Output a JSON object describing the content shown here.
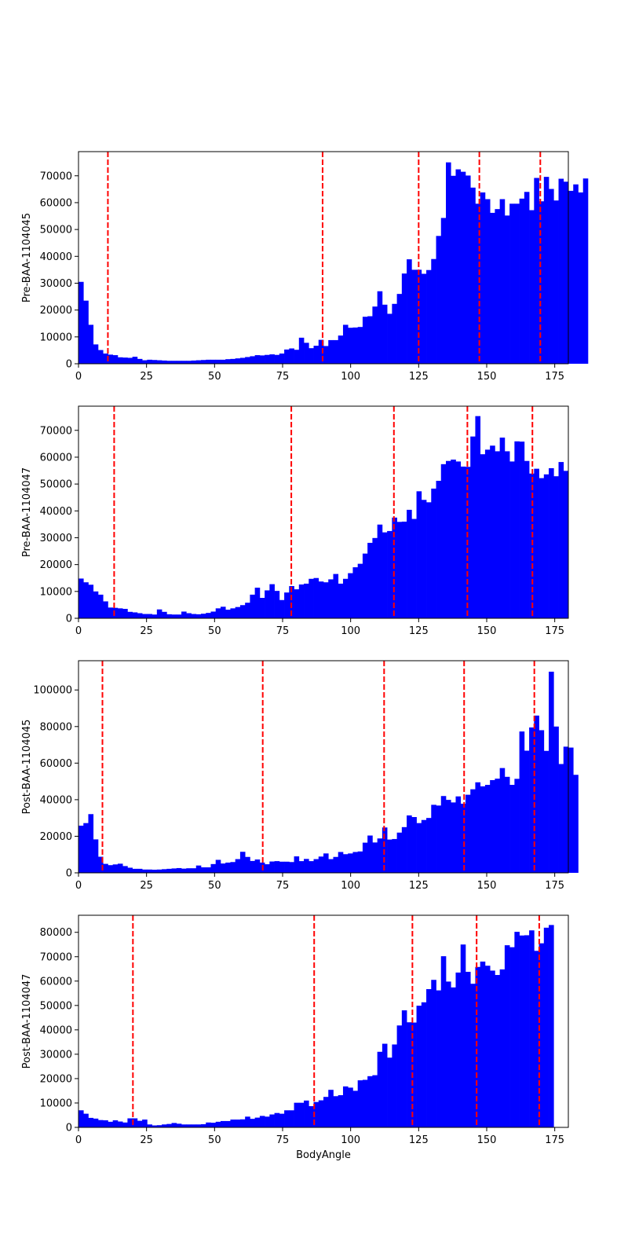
{
  "chart_data": [
    {
      "type": "bar",
      "ylabel": "Pre-BAA-1104045",
      "xlabel": "",
      "xlim": [
        0,
        180
      ],
      "ylim": [
        0,
        79000
      ],
      "bar_width": 1.8,
      "color": "#0000ff",
      "threshold_color": "#ff0000",
      "x_ticks": [
        "0",
        "25",
        "50",
        "75",
        "100",
        "125",
        "150",
        "175"
      ],
      "y_ticks": [
        "0",
        "10000",
        "20000",
        "30000",
        "40000",
        "50000",
        "60000",
        "70000"
      ],
      "thresholds": [
        10.8,
        89.7,
        125,
        147.3,
        169.7
      ],
      "values": [
        30500,
        23500,
        14500,
        7200,
        5100,
        3800,
        3400,
        3200,
        2400,
        2300,
        2200,
        2600,
        1800,
        1300,
        1500,
        1400,
        1300,
        1200,
        1100,
        1100,
        1100,
        1100,
        1100,
        1200,
        1300,
        1400,
        1500,
        1500,
        1500,
        1500,
        1700,
        1800,
        2000,
        2200,
        2500,
        2800,
        3200,
        3100,
        3300,
        3500,
        3300,
        3800,
        5300,
        5700,
        5200,
        9700,
        7800,
        5800,
        6700,
        8900,
        6600,
        8800,
        8800,
        10500,
        14500,
        13400,
        13500,
        13700,
        17500,
        17700,
        21300,
        27000,
        22000,
        18600,
        22300,
        26000,
        33600,
        38900,
        35000,
        35000,
        33500,
        34900,
        39000,
        47600,
        54300,
        75000,
        70000,
        72400,
        71500,
        70100,
        65600,
        59600,
        63800,
        61300,
        56200,
        57600,
        61300,
        55200,
        59600,
        59600,
        61500,
        64000,
        57200,
        69200,
        60500,
        69600,
        65100,
        60800,
        68900,
        67800,
        64400,
        66800,
        63800,
        69000
      ]
    },
    {
      "type": "bar",
      "ylabel": "Pre-BAA-1104047",
      "xlabel": "",
      "xlim": [
        0,
        180
      ],
      "ylim": [
        0,
        79000
      ],
      "bar_width": 1.8,
      "color": "#0000ff",
      "threshold_color": "#ff0000",
      "x_ticks": [
        "0",
        "25",
        "50",
        "75",
        "100",
        "125",
        "150",
        "175"
      ],
      "y_ticks": [
        "0",
        "10000",
        "20000",
        "30000",
        "40000",
        "50000",
        "60000",
        "70000"
      ],
      "thresholds": [
        13.1,
        78.2,
        115.9,
        142.9,
        166.8
      ],
      "values": [
        14800,
        13400,
        12500,
        10000,
        8800,
        6300,
        4000,
        3900,
        3700,
        3500,
        2400,
        2200,
        1900,
        1600,
        1600,
        1400,
        3300,
        2400,
        1500,
        1400,
        1400,
        2500,
        1900,
        1600,
        1500,
        1700,
        2000,
        2500,
        3700,
        4300,
        3200,
        3700,
        4200,
        4900,
        5800,
        8800,
        11400,
        7600,
        10400,
        12700,
        10200,
        6800,
        9600,
        12000,
        10800,
        12600,
        12900,
        14700,
        15000,
        13700,
        13400,
        14500,
        16500,
        12900,
        14700,
        16800,
        19000,
        20300,
        24100,
        28100,
        29900,
        34900,
        32000,
        32500,
        37500,
        35900,
        36000,
        40400,
        37000,
        47300,
        44100,
        43200,
        48300,
        51200,
        57400,
        58600,
        59100,
        58400,
        56500,
        56400,
        67700,
        75300,
        61100,
        62800,
        64300,
        62200,
        67300,
        62200,
        58400,
        65900,
        65800,
        58600,
        53900,
        55700,
        52200,
        53600,
        55900,
        52900,
        58200,
        54900
      ]
    },
    {
      "type": "bar",
      "ylabel": "Post-BAA-1104045",
      "xlabel": "",
      "xlim": [
        0,
        180
      ],
      "ylim": [
        0,
        116000
      ],
      "bar_width": 1.8,
      "color": "#0000ff",
      "threshold_color": "#ff0000",
      "x_ticks": [
        "0",
        "25",
        "50",
        "75",
        "100",
        "125",
        "150",
        "175"
      ],
      "y_ticks": [
        "0",
        "20000",
        "40000",
        "60000",
        "80000",
        "100000"
      ],
      "thresholds": [
        8.8,
        67.7,
        112.3,
        141.7,
        167.5
      ],
      "values": [
        25800,
        27200,
        32100,
        18300,
        8800,
        4900,
        4200,
        4600,
        5000,
        3700,
        2800,
        2200,
        2200,
        1800,
        1800,
        1700,
        1800,
        2000,
        2200,
        2400,
        2600,
        2300,
        2500,
        2500,
        4000,
        3000,
        3000,
        4800,
        7100,
        5100,
        5600,
        5900,
        7500,
        11500,
        8700,
        6500,
        7300,
        5600,
        4700,
        6200,
        6400,
        6100,
        6100,
        5900,
        9000,
        6400,
        7600,
        6400,
        7500,
        8900,
        10600,
        7500,
        8700,
        11400,
        10200,
        10600,
        11400,
        11700,
        16500,
        20400,
        16600,
        18800,
        24800,
        18200,
        18500,
        22000,
        25000,
        31400,
        30500,
        27200,
        28900,
        30000,
        37200,
        36800,
        42000,
        39900,
        38500,
        41800,
        37800,
        42700,
        45700,
        49500,
        47300,
        48100,
        50700,
        51500,
        57300,
        52500,
        48100,
        51400,
        77300,
        66800,
        79500,
        86000,
        78000,
        66700,
        110000,
        80000,
        59500,
        69000,
        68500,
        53600
      ]
    },
    {
      "type": "bar",
      "ylabel": "Post-BAA-1104047",
      "xlabel": "BodyAngle",
      "xlim": [
        0,
        180
      ],
      "ylim": [
        0,
        87000
      ],
      "bar_width": 1.8,
      "color": "#0000ff",
      "threshold_color": "#ff0000",
      "x_ticks": [
        "0",
        "25",
        "50",
        "75",
        "100",
        "125",
        "150",
        "175"
      ],
      "y_ticks": [
        "0",
        "10000",
        "20000",
        "30000",
        "40000",
        "50000",
        "60000",
        "70000",
        "80000"
      ],
      "thresholds": [
        20,
        86.6,
        122.7,
        146.3,
        169.3
      ],
      "values": [
        7000,
        5600,
        3900,
        3600,
        3000,
        2900,
        2300,
        2900,
        2400,
        2000,
        3700,
        3700,
        2700,
        3200,
        1200,
        800,
        900,
        1200,
        1400,
        1800,
        1500,
        1200,
        1200,
        1200,
        1200,
        1300,
        2000,
        1900,
        2300,
        2600,
        2600,
        3200,
        3200,
        3300,
        4400,
        3500,
        4000,
        4700,
        4400,
        5300,
        5900,
        5600,
        7000,
        7000,
        10100,
        10100,
        11000,
        8700,
        10400,
        11100,
        12500,
        15400,
        12800,
        13200,
        16800,
        16300,
        15000,
        19300,
        19500,
        21000,
        21400,
        31000,
        34300,
        28600,
        34000,
        41800,
        48000,
        43100,
        43000,
        49900,
        51300,
        56700,
        60500,
        56200,
        70200,
        59800,
        57400,
        63500,
        75000,
        63800,
        58900,
        65800,
        68000,
        66300,
        64300,
        62500,
        64800,
        74700,
        73900,
        80200,
        78700,
        78800,
        80800,
        72400,
        75500,
        81900,
        83000
      ]
    }
  ]
}
